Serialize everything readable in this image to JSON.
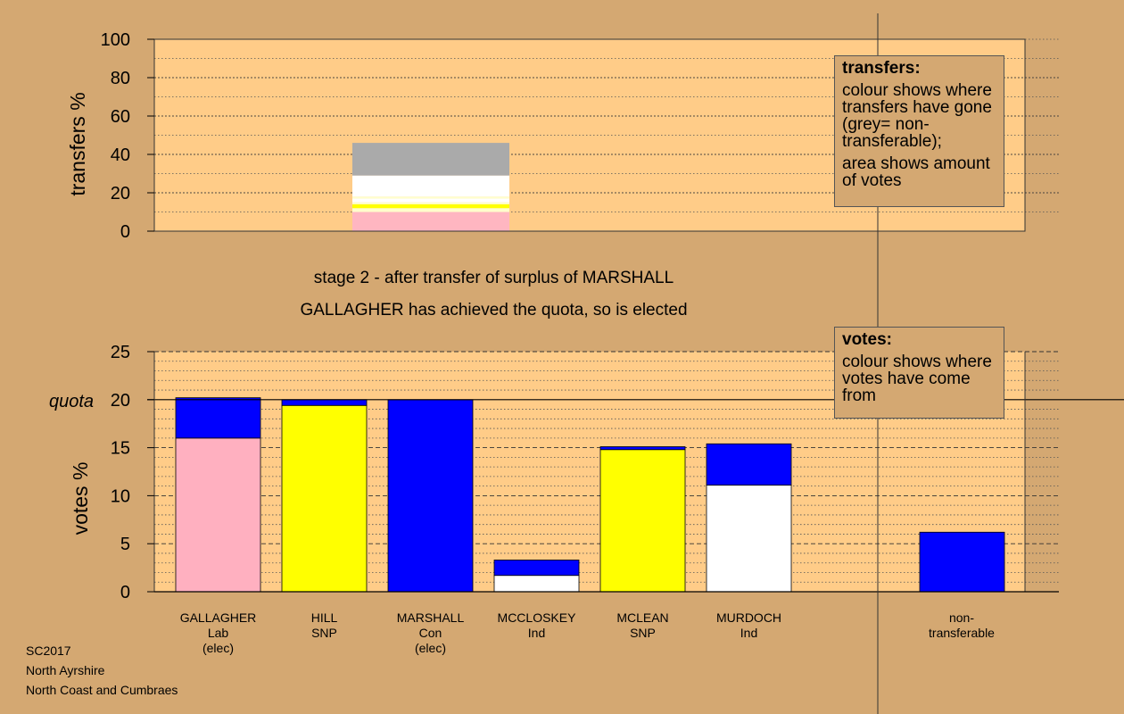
{
  "chart_data": [
    {
      "type": "bar",
      "stacked": true,
      "ylabel": "transfers %",
      "ylim": [
        0,
        100
      ],
      "yticks": [
        0,
        20,
        40,
        60,
        80,
        100
      ],
      "grid": true,
      "bars": [
        {
          "index": 2,
          "segments": [
            {
              "color": "#ffb6c1",
              "value": 10
            },
            {
              "color": "#ffffcc",
              "value": 2
            },
            {
              "color": "#ffff00",
              "value": 2
            },
            {
              "color": "#ffffcc",
              "value": 1
            },
            {
              "color": "#ffffff",
              "value": 2
            },
            {
              "color": "#ffffcc",
              "value": 1
            },
            {
              "color": "#ffffff",
              "value": 11
            },
            {
              "color": "#aaaaaa",
              "value": 17
            }
          ]
        }
      ]
    },
    {
      "type": "bar",
      "stacked": true,
      "ylabel": "votes %",
      "ylim": [
        0,
        25
      ],
      "yticks": [
        0,
        5,
        10,
        15,
        20,
        25
      ],
      "quota": 20,
      "quota_label": "quota",
      "grid": true,
      "categories": [
        {
          "name": "GALLAGHER",
          "party": "Lab",
          "note": "(elec)"
        },
        {
          "name": "HILL",
          "party": "SNP",
          "note": ""
        },
        {
          "name": "MARSHALL",
          "party": "Con",
          "note": "(elec)"
        },
        {
          "name": "MCCLOSKEY",
          "party": "Ind",
          "note": ""
        },
        {
          "name": "MCLEAN",
          "party": "SNP",
          "note": ""
        },
        {
          "name": "MURDOCH",
          "party": "Ind",
          "note": ""
        }
      ],
      "nontransferable": {
        "label1": "non-",
        "label2": "transferable",
        "value": 6.2,
        "color": "#0000ff"
      },
      "bars": [
        {
          "segments": [
            {
              "color": "#ffb0c0",
              "value": 16.0
            },
            {
              "color": "#0000ff",
              "value": 4.2
            }
          ]
        },
        {
          "segments": [
            {
              "color": "#ffff00",
              "value": 19.4
            },
            {
              "color": "#0000ff",
              "value": 0.6
            }
          ]
        },
        {
          "segments": [
            {
              "color": "#0000ff",
              "value": 20.0
            }
          ]
        },
        {
          "segments": [
            {
              "color": "#ffffff",
              "value": 1.7
            },
            {
              "color": "#0000ff",
              "value": 1.6
            }
          ]
        },
        {
          "segments": [
            {
              "color": "#ffff00",
              "value": 14.8
            },
            {
              "color": "#0000ff",
              "value": 0.3
            }
          ]
        },
        {
          "segments": [
            {
              "color": "#ffffff",
              "value": 11.1
            },
            {
              "color": "#0000ff",
              "value": 4.3
            }
          ]
        }
      ]
    }
  ],
  "legend_transfers": {
    "title": "transfers:",
    "line1": "colour shows where transfers have gone (grey= non-transferable);",
    "line2": "area shows amount of votes"
  },
  "legend_votes": {
    "title": "votes:",
    "line1": "colour shows where votes have come from"
  },
  "captions": {
    "stage": "stage 2 - after transfer of surplus of MARSHALL",
    "status": "GALLAGHER has achieved the quota, so is elected"
  },
  "footer": {
    "line1": "SC2017",
    "line2": "North Ayrshire",
    "line3": "North Coast and Cumbraes"
  },
  "colors": {
    "background": "#d4a872",
    "plot_background": "#ffcc88"
  }
}
